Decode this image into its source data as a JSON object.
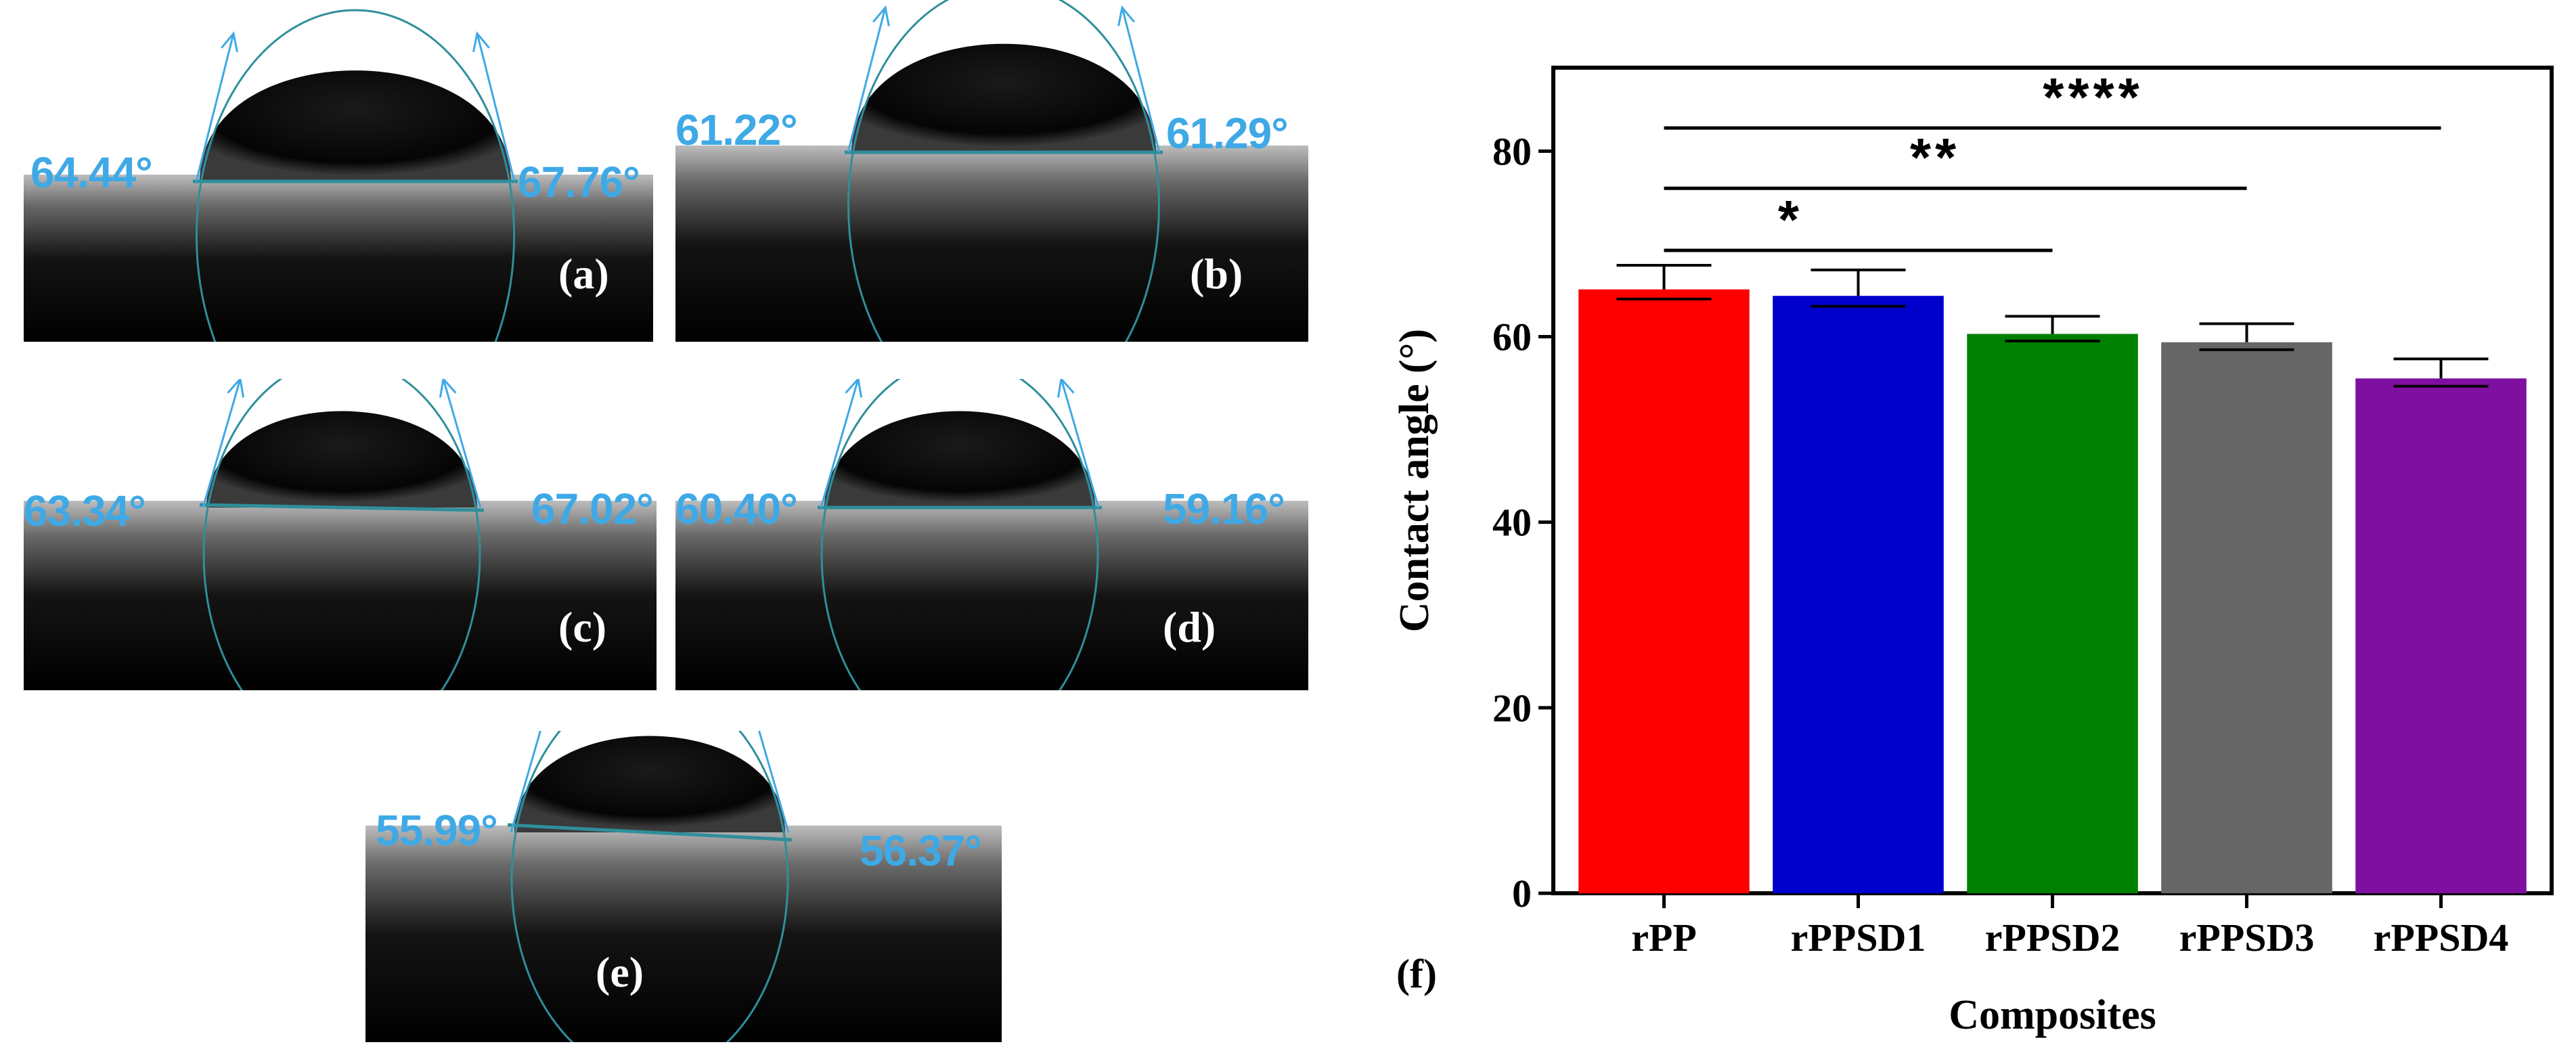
{
  "panels": [
    {
      "id": "a",
      "label": "(a)",
      "left_angle": "64.44°",
      "right_angle": "67.76°"
    },
    {
      "id": "b",
      "label": "(b)",
      "left_angle": "61.22°",
      "right_angle": "61.29°"
    },
    {
      "id": "c",
      "label": "(c)",
      "left_angle": "63.34°",
      "right_angle": "67.02°"
    },
    {
      "id": "d",
      "label": "(d)",
      "left_angle": "60.40°",
      "right_angle": "59.16°"
    },
    {
      "id": "e",
      "label": "(e)",
      "left_angle": "55.99°",
      "right_angle": "56.37°"
    }
  ],
  "chart_panel_label": "(f)",
  "colors": {
    "angle_text": "#3fa9e6",
    "drop_outline": "#2e8f9a",
    "bars": [
      "#ff0000",
      "#0000cc",
      "#008000",
      "#666666",
      "#7f0f9f"
    ]
  },
  "chart_data": {
    "type": "bar",
    "categories": [
      "rPP",
      "rPPSD1",
      "rPPSD2",
      "rPPSD3",
      "rPPSD4"
    ],
    "values": [
      65.1,
      64.4,
      60.3,
      59.4,
      55.5
    ],
    "errors": [
      2.6,
      2.8,
      1.9,
      2.0,
      2.1
    ],
    "xlabel": "Composites",
    "ylabel": "Contact angle (°)",
    "ylim": [
      0,
      89
    ],
    "yticks": [
      0,
      20,
      40,
      60,
      80
    ],
    "grid": false,
    "significance": [
      {
        "from": "rPP",
        "to": "rPPSD2",
        "label": "*"
      },
      {
        "from": "rPP",
        "to": "rPPSD3",
        "label": "**"
      },
      {
        "from": "rPP",
        "to": "rPPSD4",
        "label": "****"
      }
    ]
  }
}
